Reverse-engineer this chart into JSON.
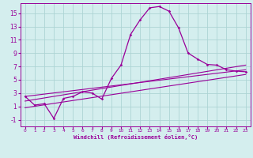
{
  "xlabel": "Windchill (Refroidissement éolien,°C)",
  "bg_color": "#d4eeee",
  "grid_color": "#add4d4",
  "line_color": "#990099",
  "xlim": [
    -0.5,
    23.5
  ],
  "ylim": [
    -2.0,
    16.5
  ],
  "xticks": [
    0,
    1,
    2,
    3,
    4,
    5,
    6,
    7,
    8,
    9,
    10,
    11,
    12,
    13,
    14,
    15,
    16,
    17,
    18,
    19,
    20,
    21,
    22,
    23
  ],
  "yticks": [
    -1,
    1,
    3,
    5,
    7,
    9,
    11,
    13,
    15
  ],
  "main_x": [
    0,
    1,
    2,
    3,
    4,
    5,
    6,
    7,
    8,
    9,
    10,
    11,
    12,
    13,
    14,
    15,
    16,
    17,
    18,
    19,
    20,
    21,
    22,
    23
  ],
  "main_y": [
    2.5,
    1.2,
    1.4,
    -0.8,
    2.2,
    2.5,
    3.2,
    3.0,
    2.1,
    5.2,
    7.2,
    11.8,
    14.0,
    15.8,
    16.0,
    15.3,
    12.8,
    9.0,
    8.1,
    7.3,
    7.2,
    6.5,
    6.3,
    6.2
  ],
  "line1_x": [
    0,
    23
  ],
  "line1_y": [
    1.8,
    7.2
  ],
  "line2_x": [
    0,
    23
  ],
  "line2_y": [
    0.8,
    5.8
  ],
  "line3_x": [
    0,
    23
  ],
  "line3_y": [
    2.5,
    6.5
  ]
}
